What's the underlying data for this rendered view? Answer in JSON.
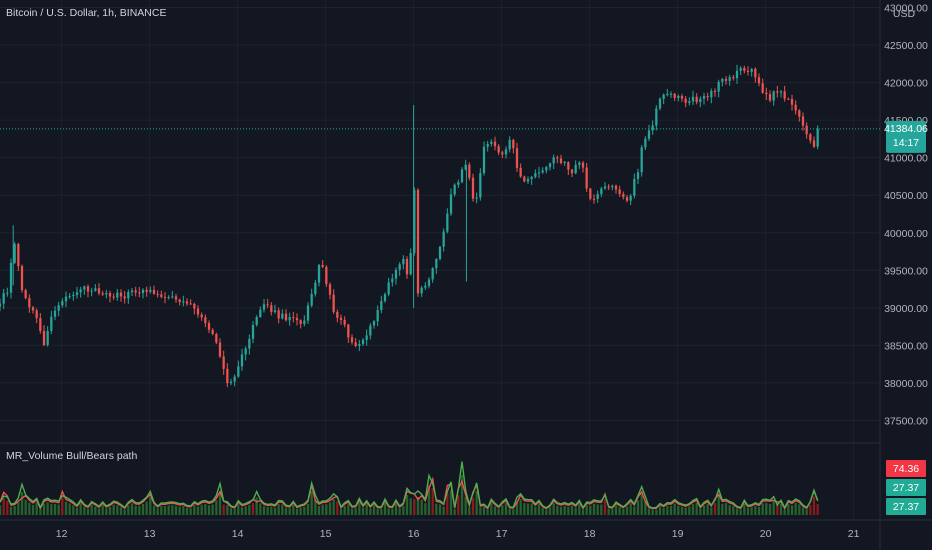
{
  "symbol_title": "Bitcoin / U.S. Dollar, 1h, BINANCE",
  "currency": "USD",
  "indicator_title": "MR_Volume Bull/Bears path",
  "last_price_label": "41384.06",
  "countdown_label": "14:17",
  "indicator_badges": [
    {
      "label": "74.36",
      "color": "#f23645"
    },
    {
      "label": "27.37",
      "color": "#22ab94"
    },
    {
      "label": "27.37",
      "color": "#22ab94"
    }
  ],
  "colors": {
    "background": "#131722",
    "grid": "#1e222d",
    "up": "#26a69a",
    "down": "#ef5350",
    "bull_line": "#4caf50",
    "bear_line": "#f05350",
    "price_line": "#26a69a"
  },
  "chart_data": [
    {
      "type": "candlestick",
      "title": "Bitcoin / U.S. Dollar, 1h, BINANCE",
      "y_axis_unit": "USD",
      "x_tick_labels": [
        "12",
        "13",
        "14",
        "15",
        "16",
        "17",
        "18",
        "19",
        "20",
        "21"
      ],
      "x_ticks": [
        12,
        13,
        14,
        15,
        16,
        17,
        18,
        19,
        20,
        21
      ],
      "xlim": [
        11.3,
        21.3
      ],
      "y_tick_labels": [
        "43000.00",
        "42500.00",
        "42000.00",
        "41500.00",
        "41000.00",
        "40500.00",
        "40000.00",
        "39500.00",
        "39000.00",
        "38500.00",
        "38000.00",
        "37500.00"
      ],
      "y_ticks": [
        43000,
        42500,
        42000,
        41500,
        41000,
        40500,
        40000,
        39500,
        39000,
        38500,
        38000,
        37500
      ],
      "ylim": [
        37200,
        43100
      ],
      "grid": true,
      "last_price": 41384.06,
      "anchors": [
        [
          11.3,
          39100
        ],
        [
          11.4,
          39250
        ],
        [
          11.45,
          40000
        ],
        [
          11.55,
          39200
        ],
        [
          11.7,
          38900
        ],
        [
          11.8,
          38550
        ],
        [
          11.9,
          38950
        ],
        [
          12.0,
          39100
        ],
        [
          12.2,
          39250
        ],
        [
          12.5,
          39200
        ],
        [
          12.7,
          39150
        ],
        [
          12.9,
          39250
        ],
        [
          13.1,
          39200
        ],
        [
          13.3,
          39100
        ],
        [
          13.5,
          39000
        ],
        [
          13.6,
          38850
        ],
        [
          13.7,
          38700
        ],
        [
          13.8,
          38350
        ],
        [
          13.9,
          37950
        ],
        [
          14.0,
          38200
        ],
        [
          14.1,
          38500
        ],
        [
          14.2,
          38850
        ],
        [
          14.3,
          39050
        ],
        [
          14.45,
          38900
        ],
        [
          14.6,
          38850
        ],
        [
          14.75,
          38800
        ],
        [
          14.85,
          39200
        ],
        [
          14.95,
          39650
        ],
        [
          15.0,
          39400
        ],
        [
          15.1,
          38900
        ],
        [
          15.2,
          38850
        ],
        [
          15.3,
          38500
        ],
        [
          15.45,
          38600
        ],
        [
          15.6,
          39000
        ],
        [
          15.75,
          39400
        ],
        [
          15.9,
          39700
        ],
        [
          15.95,
          39200
        ],
        [
          16.0,
          40800
        ],
        [
          16.05,
          39200
        ],
        [
          16.15,
          39300
        ],
        [
          16.3,
          39800
        ],
        [
          16.4,
          40400
        ],
        [
          16.5,
          40700
        ],
        [
          16.6,
          40900
        ],
        [
          16.7,
          40300
        ],
        [
          16.8,
          41100
        ],
        [
          16.9,
          41200
        ],
        [
          17.0,
          41050
        ],
        [
          17.1,
          41250
        ],
        [
          17.2,
          40750
        ],
        [
          17.3,
          40700
        ],
        [
          17.5,
          40900
        ],
        [
          17.65,
          41000
        ],
        [
          17.8,
          40800
        ],
        [
          17.9,
          41000
        ],
        [
          18.0,
          40400
        ],
        [
          18.1,
          40500
        ],
        [
          18.2,
          40650
        ],
        [
          18.35,
          40500
        ],
        [
          18.45,
          40450
        ],
        [
          18.55,
          40850
        ],
        [
          18.6,
          41200
        ],
        [
          18.7,
          41400
        ],
        [
          18.8,
          41800
        ],
        [
          18.9,
          41850
        ],
        [
          19.1,
          41750
        ],
        [
          19.3,
          41800
        ],
        [
          19.5,
          42000
        ],
        [
          19.65,
          42100
        ],
        [
          19.75,
          42200
        ],
        [
          19.85,
          42150
        ],
        [
          19.95,
          41900
        ],
        [
          20.05,
          41800
        ],
        [
          20.15,
          41900
        ],
        [
          20.3,
          41700
        ],
        [
          20.4,
          41500
        ],
        [
          20.5,
          41200
        ],
        [
          20.55,
          41150
        ],
        [
          20.6,
          41384
        ]
      ]
    },
    {
      "type": "line",
      "title": "MR_Volume Bull/Bears path",
      "series": [
        {
          "name": "",
          "color": "#f05350",
          "last_value": 74.36
        },
        {
          "name": "",
          "color": "#4caf50",
          "last_value": 27.37
        },
        {
          "name": "",
          "color": "#4caf50",
          "last_value": 27.37
        }
      ],
      "x_ticks": [
        12,
        13,
        14,
        15,
        16,
        17,
        18,
        19,
        20,
        21
      ],
      "xlim": [
        11.3,
        21.3
      ],
      "ylim": [
        0,
        100
      ],
      "spikes": [
        [
          11.35,
          50
        ],
        [
          11.55,
          35
        ],
        [
          12.0,
          20
        ],
        [
          13.0,
          18
        ],
        [
          13.8,
          25
        ],
        [
          14.2,
          30
        ],
        [
          14.85,
          30
        ],
        [
          15.1,
          22
        ],
        [
          15.95,
          45
        ],
        [
          16.05,
          30
        ],
        [
          16.2,
          85
        ],
        [
          16.4,
          55
        ],
        [
          16.55,
          88
        ],
        [
          16.7,
          40
        ],
        [
          17.2,
          28
        ],
        [
          18.15,
          20
        ],
        [
          18.6,
          32
        ],
        [
          19.45,
          22
        ],
        [
          20.1,
          20
        ],
        [
          20.55,
          22
        ]
      ]
    }
  ]
}
